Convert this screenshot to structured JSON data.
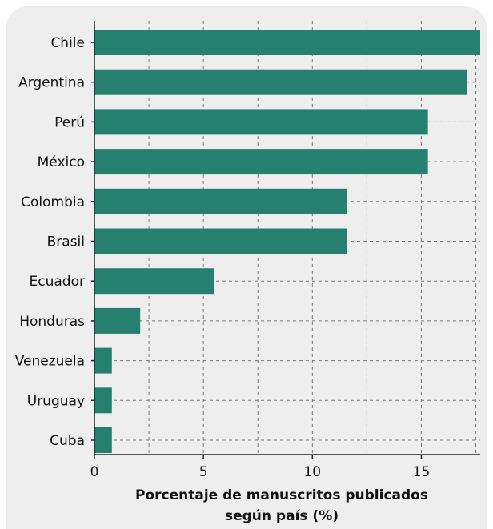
{
  "chart_data": {
    "type": "bar",
    "orientation": "horizontal",
    "categories": [
      "Chile",
      "Argentina",
      "Perú",
      "México",
      "Colombia",
      "Brasil",
      "Ecuador",
      "Honduras",
      "Venezuela",
      "Uruguay",
      "Cuba"
    ],
    "values": [
      17.7,
      17.1,
      15.3,
      15.3,
      11.6,
      11.6,
      5.5,
      2.1,
      0.8,
      0.8,
      0.8
    ],
    "xlabel_lines": [
      "Porcentaje de manuscritos publicados",
      "según país (%)"
    ],
    "xticks": [
      0,
      5,
      10,
      15
    ],
    "xlim": [
      0,
      17.7
    ],
    "grid": "vertical dashed",
    "bar_color": "#26806f"
  }
}
